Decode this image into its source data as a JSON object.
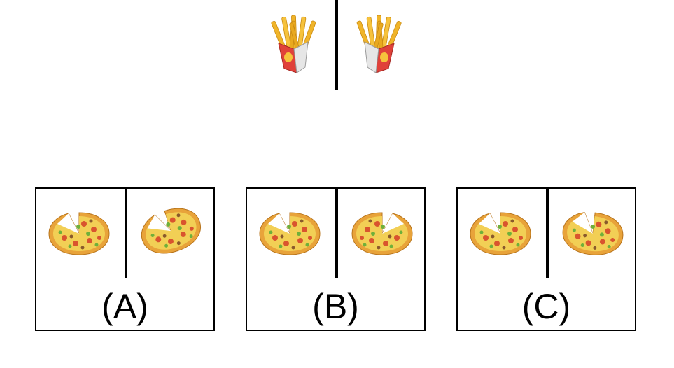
{
  "question": {
    "left_image": "french-fries-icon",
    "right_image": "french-fries-icon"
  },
  "options": [
    {
      "label": "(A)",
      "left_image": "pizza-icon",
      "right_image": "pizza-icon"
    },
    {
      "label": "(B)",
      "left_image": "pizza-icon",
      "right_image": "pizza-icon"
    },
    {
      "label": "(C)",
      "left_image": "pizza-icon",
      "right_image": "pizza-icon"
    }
  ],
  "colors": {
    "line": "#000000",
    "crust": "#e8a33a",
    "cheese": "#f2cf55",
    "topping_red": "#d9542e",
    "topping_green": "#6fb03a",
    "fries": "#f0b429",
    "fries_box_red": "#e0413a",
    "fries_box_white": "#e6e6e6"
  }
}
